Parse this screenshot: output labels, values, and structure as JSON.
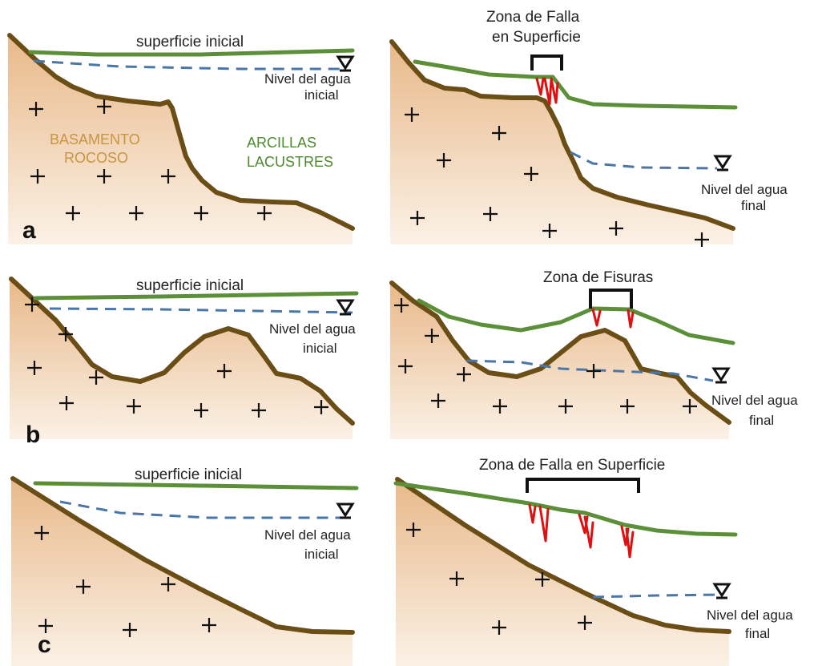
{
  "colors": {
    "bedrock_fill_top": "#e8b98a",
    "bedrock_fill_bottom": "#fbf1e6",
    "bedrock_line": "#6b4e16",
    "surface_line": "#5b8f38",
    "water_line": "#4a76a8",
    "fissure": "#e01010",
    "rock_label": "#c89540",
    "clay_label": "#4e8a2e"
  },
  "panel_a": {
    "letter": "a",
    "left": {
      "surface_label": "superficie inicial",
      "water_label_line1": "Nivel del agua",
      "water_label_line2": "inicial",
      "rock_label_line1": "BASAMENTO",
      "rock_label_line2": "ROCOSO",
      "clay_label_line1": "ARCILLAS",
      "clay_label_line2": "LACUSTRES"
    },
    "right": {
      "zone_label_line1": "Zona de Falla",
      "zone_label_line2": "en Superficie",
      "water_label_line1": "Nivel del agua",
      "water_label_line2": "final"
    }
  },
  "panel_b": {
    "letter": "b",
    "left": {
      "surface_label": "superficie inicial",
      "water_label_line1": "Nivel del agua",
      "water_label_line2": "inicial"
    },
    "right": {
      "zone_label": "Zona de Fisuras",
      "water_label_line1": "Nivel del agua",
      "water_label_line2": "final"
    }
  },
  "panel_c": {
    "letter": "c",
    "left": {
      "surface_label": "superficie inicial",
      "water_label_line1": "Nivel del agua",
      "water_label_line2": "inicial"
    },
    "right": {
      "zone_label": "Zona de Falla en Superficie",
      "water_label_line1": "Nivel del agua",
      "water_label_line2": "final"
    }
  }
}
